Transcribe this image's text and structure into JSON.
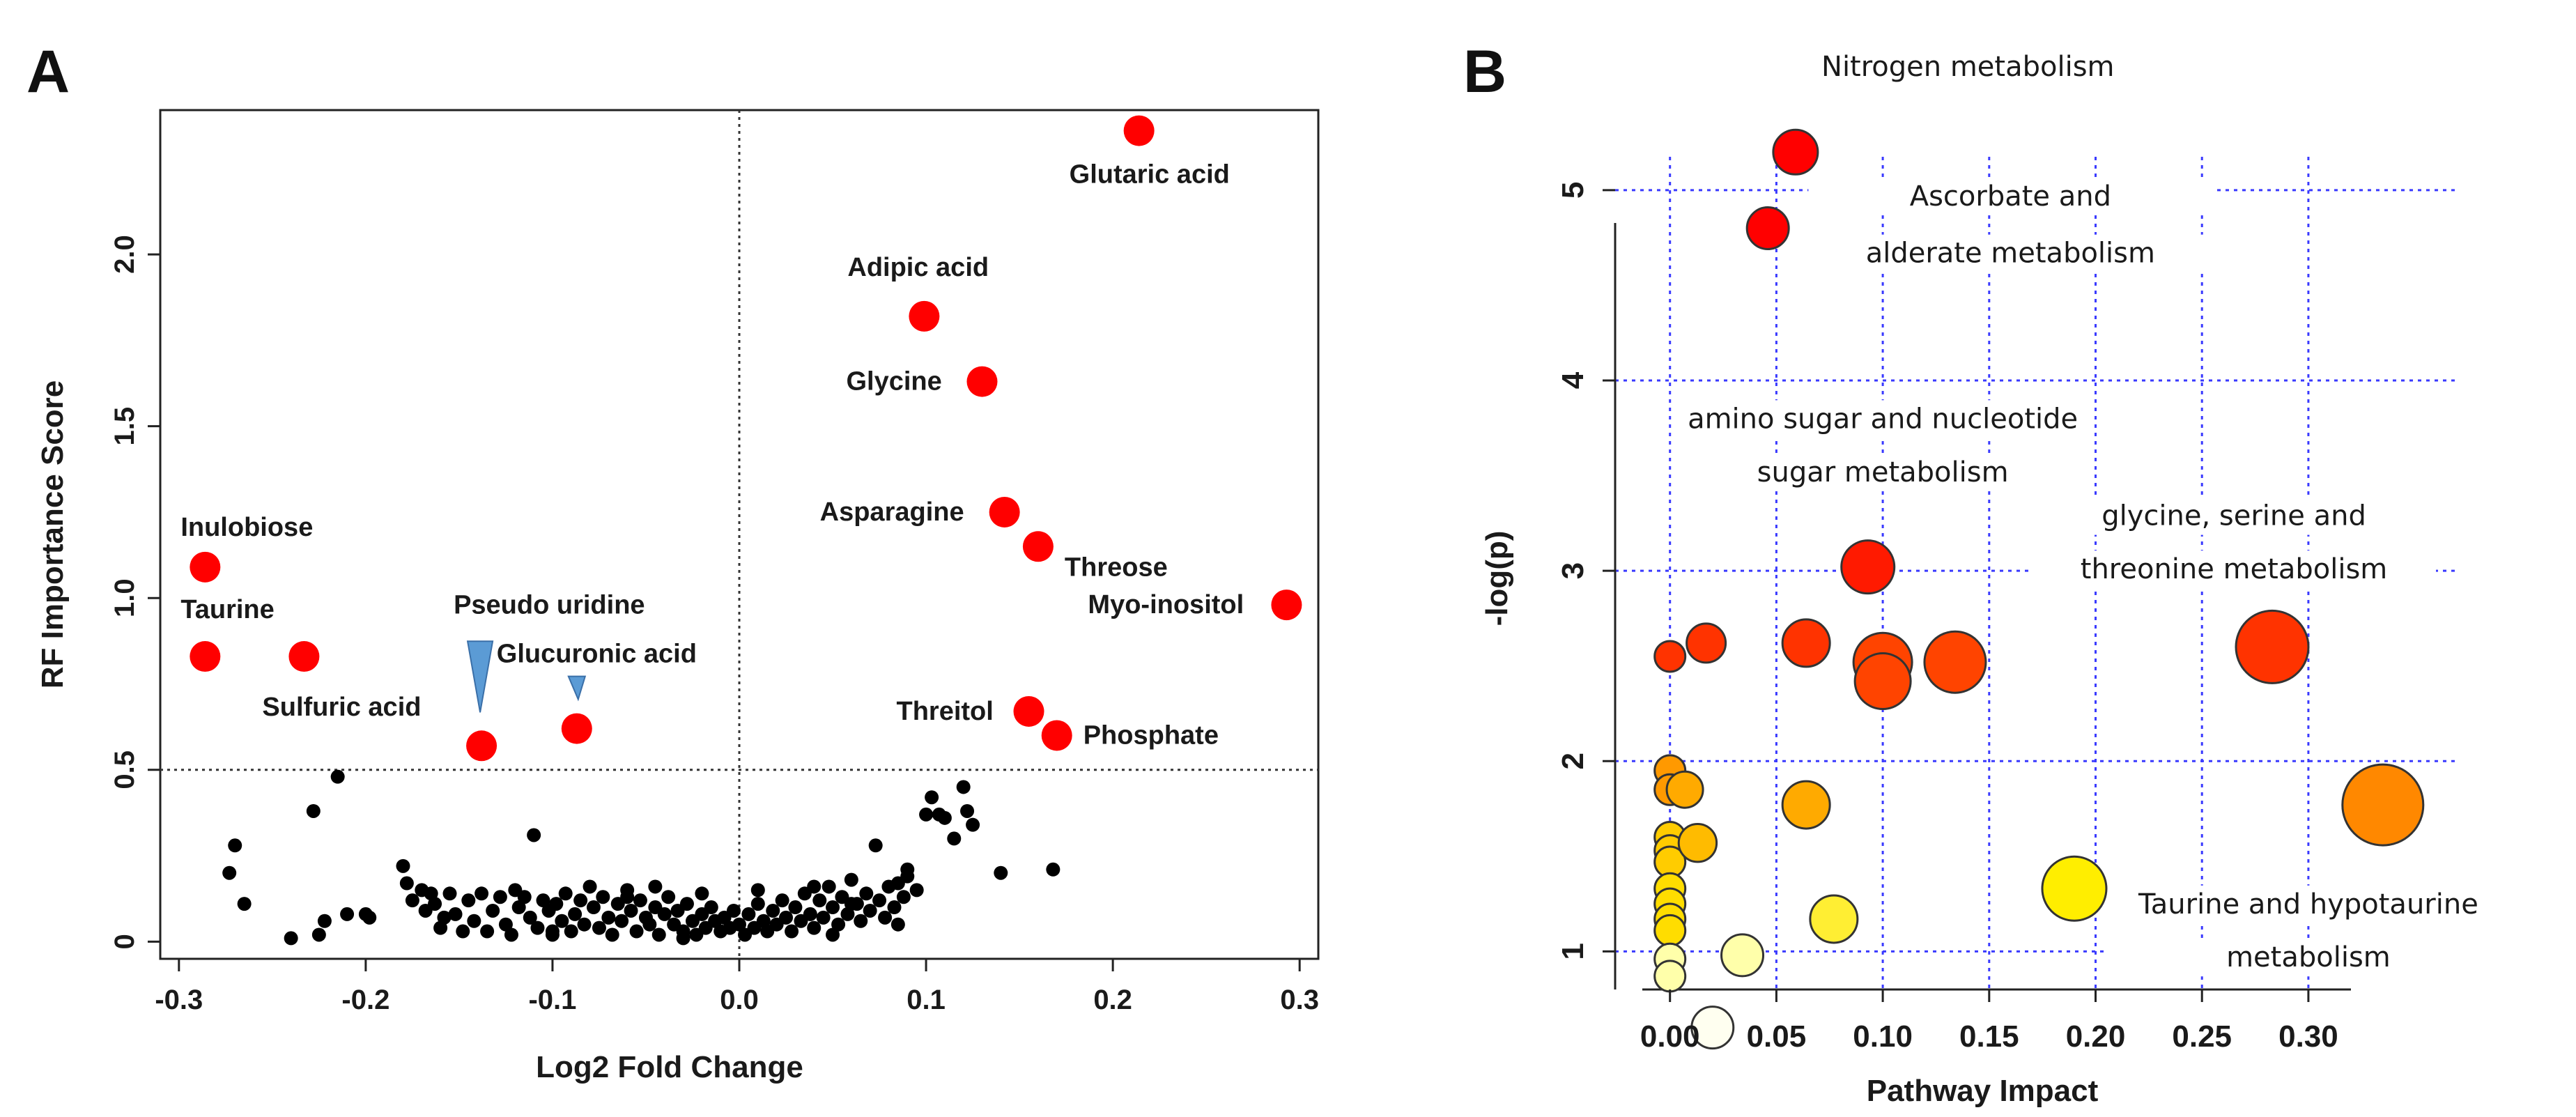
{
  "panels": [
    {
      "label": "A"
    },
    {
      "label": "B"
    }
  ],
  "chart_data": [
    {
      "panel": "A",
      "type": "scatter",
      "xlabel": "Log2 Fold Change",
      "ylabel": "RF Importance Score",
      "xlim": [
        -0.31,
        0.31
      ],
      "ylim": [
        -0.05,
        2.42
      ],
      "xticks": [
        "-0.3",
        "-0.2",
        "-0.1",
        "0.0",
        "0.1",
        "0.2",
        "0.3"
      ],
      "xtick_values": [
        -0.3,
        -0.2,
        -0.1,
        0.0,
        0.1,
        0.2,
        0.3
      ],
      "yticks": [
        "0",
        "0.5",
        "1.0",
        "1.5",
        "2.0"
      ],
      "ytick_values": [
        0,
        0.5,
        1.0,
        1.5,
        2.0
      ],
      "threshold_y": 0.5,
      "threshold_x": 0.0,
      "colors": {
        "significant": "#ff0000",
        "background": "#000000",
        "triangle": "#5b9bd5"
      },
      "significant": [
        {
          "name": "Glutaric acid",
          "x": 0.214,
          "y": 2.36
        },
        {
          "name": "Adipic acid",
          "x": 0.099,
          "y": 1.82
        },
        {
          "name": "Glycine",
          "x": 0.13,
          "y": 1.63
        },
        {
          "name": "Asparagine",
          "x": 0.142,
          "y": 1.25
        },
        {
          "name": "Threose",
          "x": 0.16,
          "y": 1.15
        },
        {
          "name": "Myo-inositol",
          "x": 0.293,
          "y": 0.98
        },
        {
          "name": "Threitol",
          "x": 0.155,
          "y": 0.67
        },
        {
          "name": "Phosphate",
          "x": 0.17,
          "y": 0.6
        },
        {
          "name": "Inulobiose",
          "x": -0.286,
          "y": 1.09
        },
        {
          "name": "Taurine",
          "x": -0.286,
          "y": 0.83
        },
        {
          "name": "Sulfuric acid",
          "x": -0.233,
          "y": 0.83
        },
        {
          "name": "Pseudo uridine",
          "x": -0.138,
          "y": 0.57
        },
        {
          "name": "Glucuronic acid",
          "x": -0.087,
          "y": 0.62
        }
      ],
      "background_points": [
        [
          -0.215,
          0.48
        ],
        [
          -0.228,
          0.38
        ],
        [
          -0.27,
          0.28
        ],
        [
          -0.273,
          0.2
        ],
        [
          -0.265,
          0.11
        ],
        [
          -0.225,
          0.02
        ],
        [
          -0.222,
          0.06
        ],
        [
          -0.21,
          0.08
        ],
        [
          -0.2,
          0.08
        ],
        [
          -0.198,
          0.07
        ],
        [
          -0.18,
          0.22
        ],
        [
          -0.178,
          0.17
        ],
        [
          -0.175,
          0.12
        ],
        [
          -0.17,
          0.15
        ],
        [
          -0.168,
          0.09
        ],
        [
          -0.163,
          0.11
        ],
        [
          -0.16,
          0.04
        ],
        [
          -0.155,
          0.14
        ],
        [
          -0.152,
          0.08
        ],
        [
          -0.148,
          0.03
        ],
        [
          -0.145,
          0.12
        ],
        [
          -0.142,
          0.06
        ],
        [
          -0.138,
          0.14
        ],
        [
          -0.135,
          0.03
        ],
        [
          -0.132,
          0.09
        ],
        [
          -0.128,
          0.13
        ],
        [
          -0.125,
          0.05
        ],
        [
          -0.122,
          0.02
        ],
        [
          -0.118,
          0.1
        ],
        [
          -0.115,
          0.13
        ],
        [
          -0.112,
          0.07
        ],
        [
          -0.108,
          0.04
        ],
        [
          -0.105,
          0.12
        ],
        [
          -0.102,
          0.09
        ],
        [
          -0.1,
          0.02
        ],
        [
          -0.098,
          0.11
        ],
        [
          -0.095,
          0.06
        ],
        [
          -0.093,
          0.14
        ],
        [
          -0.09,
          0.03
        ],
        [
          -0.088,
          0.08
        ],
        [
          -0.085,
          0.12
        ],
        [
          -0.083,
          0.05
        ],
        [
          -0.08,
          0.16
        ],
        [
          -0.078,
          0.1
        ],
        [
          -0.075,
          0.04
        ],
        [
          -0.073,
          0.13
        ],
        [
          -0.07,
          0.07
        ],
        [
          -0.068,
          0.02
        ],
        [
          -0.065,
          0.11
        ],
        [
          -0.063,
          0.06
        ],
        [
          -0.06,
          0.15
        ],
        [
          -0.058,
          0.09
        ],
        [
          -0.055,
          0.03
        ],
        [
          -0.053,
          0.12
        ],
        [
          -0.05,
          0.07
        ],
        [
          -0.048,
          0.05
        ],
        [
          -0.045,
          0.1
        ],
        [
          -0.043,
          0.02
        ],
        [
          -0.04,
          0.08
        ],
        [
          -0.038,
          0.13
        ],
        [
          -0.035,
          0.05
        ],
        [
          -0.033,
          0.09
        ],
        [
          -0.03,
          0.03
        ],
        [
          -0.028,
          0.11
        ],
        [
          -0.025,
          0.06
        ],
        [
          -0.023,
          0.02
        ],
        [
          -0.02,
          0.08
        ],
        [
          -0.018,
          0.04
        ],
        [
          -0.015,
          0.1
        ],
        [
          -0.013,
          0.06
        ],
        [
          -0.01,
          0.03
        ],
        [
          -0.008,
          0.07
        ],
        [
          -0.005,
          0.04
        ],
        [
          -0.003,
          0.09
        ],
        [
          0.0,
          0.05
        ],
        [
          0.003,
          0.02
        ],
        [
          0.005,
          0.08
        ],
        [
          0.008,
          0.04
        ],
        [
          0.01,
          0.11
        ],
        [
          0.013,
          0.06
        ],
        [
          0.015,
          0.03
        ],
        [
          0.018,
          0.09
        ],
        [
          0.02,
          0.05
        ],
        [
          0.023,
          0.12
        ],
        [
          0.025,
          0.07
        ],
        [
          0.028,
          0.03
        ],
        [
          0.03,
          0.1
        ],
        [
          0.033,
          0.06
        ],
        [
          0.035,
          0.14
        ],
        [
          0.038,
          0.08
        ],
        [
          0.04,
          0.04
        ],
        [
          0.043,
          0.12
        ],
        [
          0.045,
          0.07
        ],
        [
          0.048,
          0.16
        ],
        [
          0.05,
          0.1
        ],
        [
          0.053,
          0.05
        ],
        [
          0.055,
          0.13
        ],
        [
          0.058,
          0.08
        ],
        [
          0.06,
          0.18
        ],
        [
          0.063,
          0.11
        ],
        [
          0.065,
          0.06
        ],
        [
          0.068,
          0.14
        ],
        [
          0.07,
          0.09
        ],
        [
          0.073,
          0.28
        ],
        [
          0.075,
          0.12
        ],
        [
          0.078,
          0.07
        ],
        [
          0.08,
          0.16
        ],
        [
          0.083,
          0.1
        ],
        [
          0.085,
          0.05
        ],
        [
          0.088,
          0.13
        ],
        [
          0.09,
          0.19
        ],
        [
          0.095,
          0.15
        ],
        [
          0.1,
          0.37
        ],
        [
          0.103,
          0.42
        ],
        [
          0.107,
          0.37
        ],
        [
          0.11,
          0.36
        ],
        [
          0.115,
          0.3
        ],
        [
          0.12,
          0.45
        ],
        [
          0.122,
          0.38
        ],
        [
          0.125,
          0.34
        ],
        [
          0.14,
          0.2
        ],
        [
          0.168,
          0.21
        ],
        [
          -0.165,
          0.14
        ],
        [
          -0.158,
          0.07
        ],
        [
          -0.12,
          0.15
        ],
        [
          -0.11,
          0.31
        ],
        [
          -0.06,
          0.13
        ],
        [
          -0.045,
          0.16
        ],
        [
          -0.02,
          0.14
        ],
        [
          0.01,
          0.15
        ],
        [
          0.04,
          0.16
        ],
        [
          0.06,
          0.11
        ],
        [
          -0.24,
          0.01
        ],
        [
          -0.1,
          0.03
        ],
        [
          -0.03,
          0.01
        ],
        [
          0.05,
          0.02
        ],
        [
          0.085,
          0.17
        ],
        [
          0.09,
          0.21
        ]
      ]
    },
    {
      "panel": "B",
      "type": "scatter",
      "xlabel": "Pathway Impact",
      "ylabel": "-log(p)",
      "xlim": [
        -0.013,
        0.32
      ],
      "ylim": [
        0.8,
        5.45
      ],
      "xticks": [
        "0.00",
        "0.05",
        "0.10",
        "0.15",
        "0.20",
        "0.25",
        "0.30"
      ],
      "xtick_values": [
        0.0,
        0.05,
        0.1,
        0.15,
        0.2,
        0.25,
        0.3
      ],
      "yticks": [
        "1",
        "2",
        "3",
        "4",
        "5"
      ],
      "ytick_values": [
        1,
        2,
        3,
        4,
        5
      ],
      "grid": true,
      "grid_color": "#3a3aff",
      "annotations": [
        {
          "text": "Nitrogen metabolism",
          "x": 0.14,
          "y": 5.6
        },
        {
          "text": "Ascorbate and",
          "x": 0.16,
          "y": 4.92
        },
        {
          "text": "alderate metabolism",
          "x": 0.16,
          "y": 4.62
        },
        {
          "text": "amino sugar and nucleotide",
          "x": 0.1,
          "y": 3.75
        },
        {
          "text": "sugar metabolism",
          "x": 0.1,
          "y": 3.47
        },
        {
          "text": "glycine, serine and",
          "x": 0.265,
          "y": 3.24
        },
        {
          "text": "threonine metabolism",
          "x": 0.265,
          "y": 2.96
        },
        {
          "text": "Taurine and hypotaurine",
          "x": 0.3,
          "y": 1.2
        },
        {
          "text": "metabolism",
          "x": 0.3,
          "y": 0.92
        }
      ],
      "points": [
        {
          "x": 0.059,
          "y": 5.2,
          "size": 0.5,
          "color": "#ff0000"
        },
        {
          "x": 0.046,
          "y": 4.8,
          "size": 0.45,
          "color": "#ff0000"
        },
        {
          "x": 0.093,
          "y": 3.02,
          "size": 0.65,
          "color": "#ff1a00"
        },
        {
          "x": 0.0,
          "y": 2.55,
          "size": 0.25,
          "color": "#ff3300"
        },
        {
          "x": 0.017,
          "y": 2.62,
          "size": 0.4,
          "color": "#ff3300"
        },
        {
          "x": 0.064,
          "y": 2.62,
          "size": 0.55,
          "color": "#ff3300"
        },
        {
          "x": 0.1,
          "y": 2.52,
          "size": 0.75,
          "color": "#ff4400"
        },
        {
          "x": 0.1,
          "y": 2.42,
          "size": 0.7,
          "color": "#ff4400"
        },
        {
          "x": 0.134,
          "y": 2.52,
          "size": 0.8,
          "color": "#ff4400"
        },
        {
          "x": 0.283,
          "y": 2.6,
          "size": 1.0,
          "color": "#ff3300"
        },
        {
          "x": 0.335,
          "y": 1.77,
          "size": 1.15,
          "color": "#ff8800"
        },
        {
          "x": 0.0,
          "y": 1.95,
          "size": 0.25,
          "color": "#ff9900"
        },
        {
          "x": 0.0,
          "y": 1.85,
          "size": 0.25,
          "color": "#ff9900"
        },
        {
          "x": 0.007,
          "y": 1.85,
          "size": 0.35,
          "color": "#ffaa00"
        },
        {
          "x": 0.064,
          "y": 1.77,
          "size": 0.55,
          "color": "#ffaa00"
        },
        {
          "x": 0.0,
          "y": 1.6,
          "size": 0.25,
          "color": "#ffcc00"
        },
        {
          "x": 0.0,
          "y": 1.53,
          "size": 0.25,
          "color": "#ffcc00"
        },
        {
          "x": 0.0,
          "y": 1.47,
          "size": 0.25,
          "color": "#ffcc00"
        },
        {
          "x": 0.013,
          "y": 1.57,
          "size": 0.38,
          "color": "#ffbb00"
        },
        {
          "x": 0.0,
          "y": 1.33,
          "size": 0.25,
          "color": "#ffdd00"
        },
        {
          "x": 0.0,
          "y": 1.25,
          "size": 0.25,
          "color": "#ffdd00"
        },
        {
          "x": 0.0,
          "y": 1.17,
          "size": 0.25,
          "color": "#ffdd00"
        },
        {
          "x": 0.0,
          "y": 1.11,
          "size": 0.25,
          "color": "#ffdd00"
        },
        {
          "x": 0.19,
          "y": 1.33,
          "size": 0.85,
          "color": "#ffee00"
        },
        {
          "x": 0.077,
          "y": 1.17,
          "size": 0.55,
          "color": "#ffee33"
        },
        {
          "x": 0.0,
          "y": 0.96,
          "size": 0.25,
          "color": "#ffffaa"
        },
        {
          "x": 0.0,
          "y": 0.87,
          "size": 0.25,
          "color": "#ffffaa"
        },
        {
          "x": 0.034,
          "y": 0.98,
          "size": 0.45,
          "color": "#ffffaa"
        },
        {
          "x": 0.02,
          "y": 0.6,
          "size": 0.45,
          "color": "#fffff0"
        }
      ]
    }
  ]
}
